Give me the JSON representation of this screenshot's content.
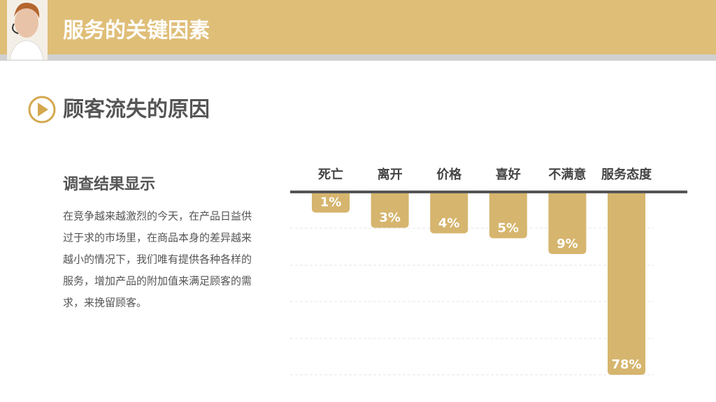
{
  "header": {
    "title": "服务的关键因素"
  },
  "section": {
    "title": "顾客流失的原因",
    "subtitle": "调查结果显示",
    "paragraph": [
      "在竞争越来越激烈的今天，在产品日益供",
      "过于求的市场里，在商品本身的差异越来",
      "越小的情况下，我们唯有提供各种各样的",
      "服务，增加产品的附加值来满足顾客的需",
      "求，来挽留顾客。"
    ]
  },
  "chart_data": {
    "type": "bar",
    "categories": [
      "死亡",
      "离开",
      "价格",
      "喜好",
      "不满意",
      "服务态度"
    ],
    "values": [
      1,
      3,
      4,
      5,
      9,
      78
    ],
    "value_labels": [
      "1%",
      "3%",
      "4%",
      "5%",
      "9%",
      "78%"
    ],
    "color": "#d6b56e",
    "y_scale": "sqrt"
  }
}
